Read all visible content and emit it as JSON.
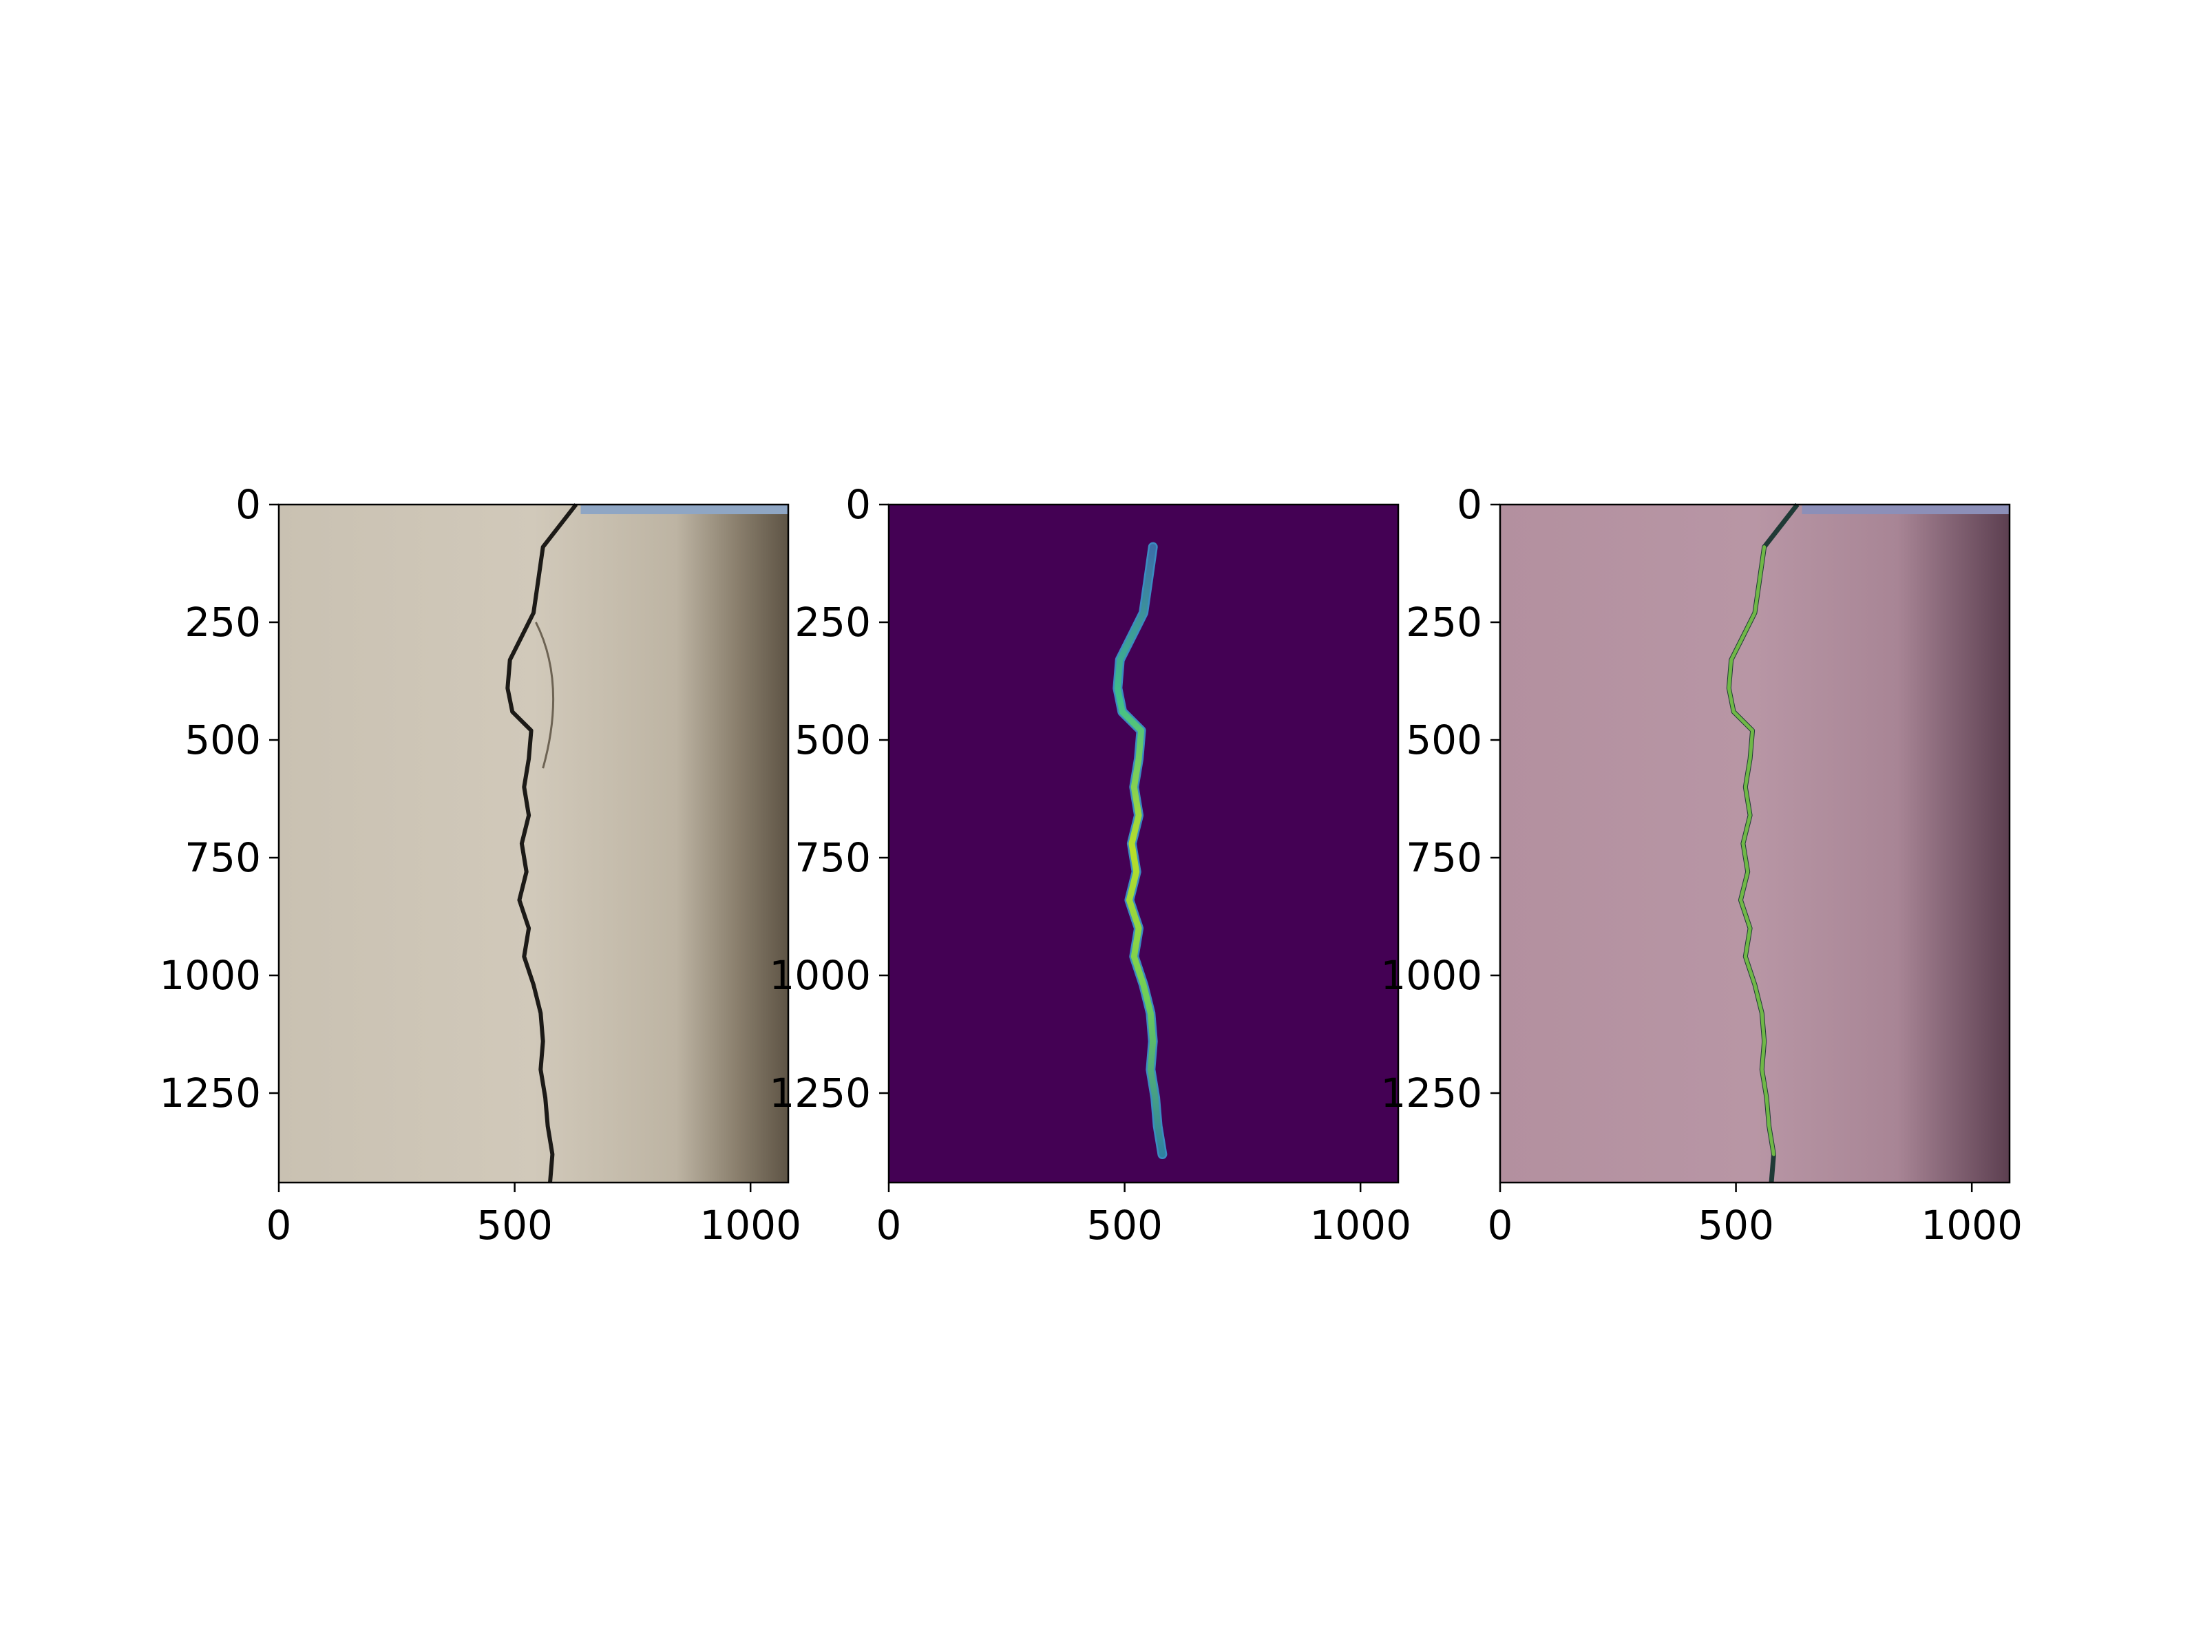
{
  "chart_data": [
    {
      "type": "image",
      "panel": "original-photo",
      "x_ticks": [
        0,
        500,
        1000
      ],
      "y_ticks": [
        0,
        250,
        500,
        750,
        1000,
        1250
      ],
      "xlim": [
        0,
        1080
      ],
      "ylim": [
        1440,
        0
      ],
      "colors": {
        "wall": "#ccc3b5",
        "crack": "#1c1a17",
        "shadow": "#4a4236"
      }
    },
    {
      "type": "heatmap",
      "panel": "crack-mask",
      "x_ticks": [
        0,
        500,
        1000
      ],
      "y_ticks": [
        0,
        250,
        500,
        750,
        1000,
        1250
      ],
      "xlim": [
        0,
        1080
      ],
      "ylim": [
        1440,
        0
      ],
      "colors": {
        "background": "#440154",
        "crack_low": "#3b8bc2",
        "crack_high": "#c8e020"
      },
      "crack_path": [
        [
          560,
          90
        ],
        [
          550,
          160
        ],
        [
          540,
          230
        ],
        [
          515,
          280
        ],
        [
          490,
          330
        ],
        [
          485,
          390
        ],
        [
          495,
          440
        ],
        [
          535,
          480
        ],
        [
          530,
          540
        ],
        [
          520,
          600
        ],
        [
          530,
          660
        ],
        [
          515,
          720
        ],
        [
          525,
          780
        ],
        [
          510,
          840
        ],
        [
          530,
          900
        ],
        [
          520,
          960
        ],
        [
          540,
          1020
        ],
        [
          555,
          1080
        ],
        [
          560,
          1140
        ],
        [
          555,
          1200
        ],
        [
          565,
          1260
        ],
        [
          570,
          1320
        ],
        [
          580,
          1380
        ]
      ]
    },
    {
      "type": "image",
      "panel": "overlay",
      "x_ticks": [
        0,
        500,
        1000
      ],
      "y_ticks": [
        0,
        250,
        500,
        750,
        1000,
        1250
      ],
      "xlim": [
        0,
        1080
      ],
      "ylim": [
        1440,
        0
      ],
      "colors": {
        "tint": "#b08ca0",
        "crack": "#2e8a70",
        "crack_high": "#b5d838"
      }
    }
  ]
}
